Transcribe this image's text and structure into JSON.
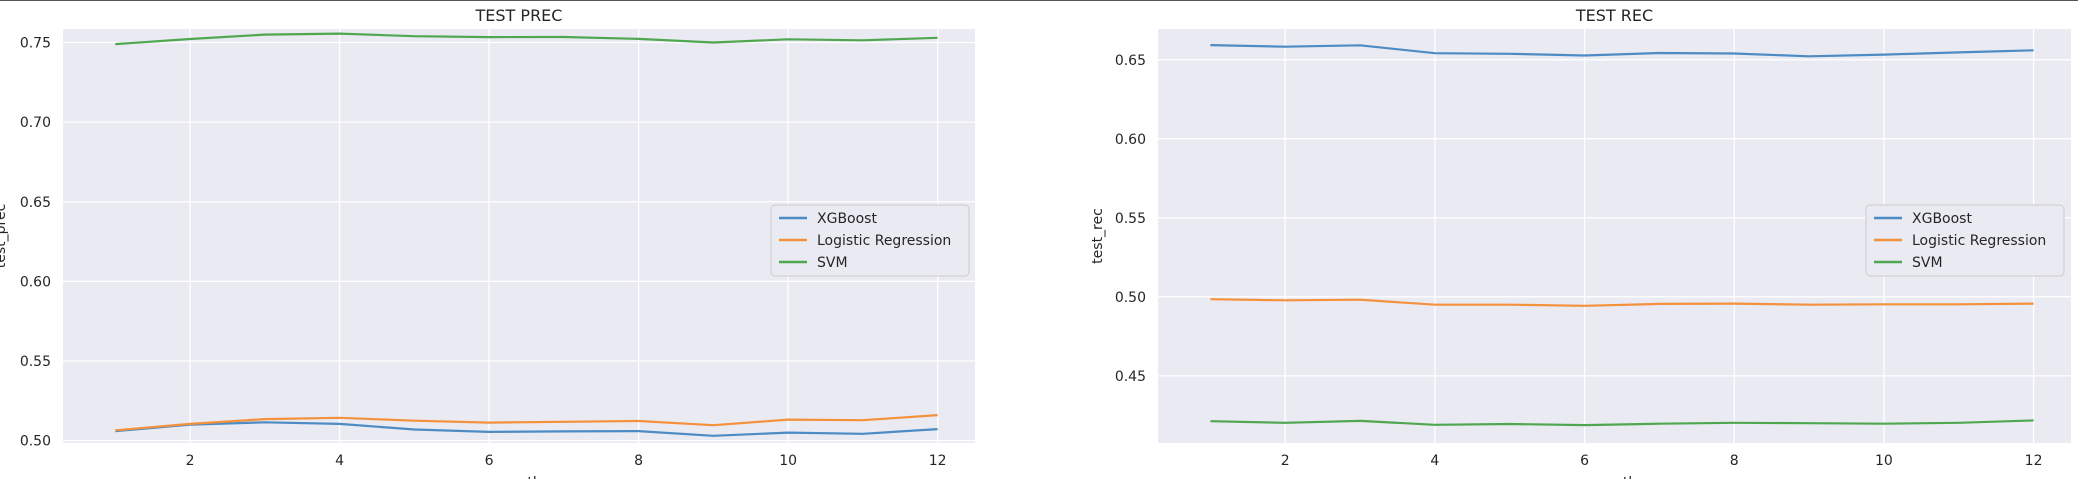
{
  "chart_data": [
    {
      "type": "line",
      "title": "TEST PREC",
      "xlabel": "month",
      "ylabel": "test_prec",
      "xlim": [
        0.3,
        12.5
      ],
      "ylim": [
        0.4985,
        0.7585
      ],
      "xticks": [
        2,
        4,
        6,
        8,
        10,
        12
      ],
      "yticks": [
        0.5,
        0.55,
        0.6,
        0.65,
        0.7,
        0.75
      ],
      "ytick_labels": [
        "0.50",
        "0.55",
        "0.60",
        "0.65",
        "0.70",
        "0.75"
      ],
      "grid": true,
      "legend_position": "center-right",
      "x": [
        1,
        2,
        3,
        4,
        5,
        6,
        7,
        8,
        9,
        10,
        11,
        12
      ],
      "series": [
        {
          "name": "XGBoost",
          "color": "#4c8bc4",
          "values": [
            0.506,
            0.51,
            0.5115,
            0.5105,
            0.507,
            0.5055,
            0.5058,
            0.506,
            0.503,
            0.505,
            0.5043,
            0.5072
          ]
        },
        {
          "name": "Logistic Regression",
          "color": "#f4913c",
          "values": [
            0.5065,
            0.5105,
            0.5135,
            0.5143,
            0.5125,
            0.5113,
            0.5118,
            0.5123,
            0.5097,
            0.5132,
            0.5128,
            0.516
          ]
        },
        {
          "name": "SVM",
          "color": "#4fa74f",
          "values": [
            0.749,
            0.7522,
            0.755,
            0.7556,
            0.754,
            0.7534,
            0.7535,
            0.7523,
            0.75,
            0.752,
            0.7514,
            0.753
          ]
        }
      ]
    },
    {
      "type": "line",
      "title": "TEST REC",
      "xlabel": "month",
      "ylabel": "test_rec",
      "xlim": [
        0.3,
        12.5
      ],
      "ylim": [
        0.4075,
        0.6695
      ],
      "xticks": [
        2,
        4,
        6,
        8,
        10,
        12
      ],
      "yticks": [
        0.45,
        0.5,
        0.55,
        0.6,
        0.65
      ],
      "ytick_labels": [
        "0.45",
        "0.50",
        "0.55",
        "0.60",
        "0.65"
      ],
      "grid": true,
      "legend_position": "center-right",
      "x": [
        1,
        2,
        3,
        4,
        5,
        6,
        7,
        8,
        9,
        10,
        11,
        12
      ],
      "series": [
        {
          "name": "XGBoost",
          "color": "#4c8bc4",
          "values": [
            0.6593,
            0.6583,
            0.6592,
            0.6542,
            0.6538,
            0.6527,
            0.6543,
            0.654,
            0.6522,
            0.6533,
            0.6547,
            0.656
          ]
        },
        {
          "name": "Logistic Regression",
          "color": "#f4913c",
          "values": [
            0.4985,
            0.4978,
            0.4982,
            0.495,
            0.495,
            0.4943,
            0.4955,
            0.4957,
            0.495,
            0.4953,
            0.4953,
            0.4957
          ]
        },
        {
          "name": "SVM",
          "color": "#4fa74f",
          "values": [
            0.4213,
            0.4203,
            0.4215,
            0.419,
            0.4195,
            0.4188,
            0.4197,
            0.4203,
            0.42,
            0.4197,
            0.4203,
            0.4218
          ]
        }
      ]
    }
  ]
}
